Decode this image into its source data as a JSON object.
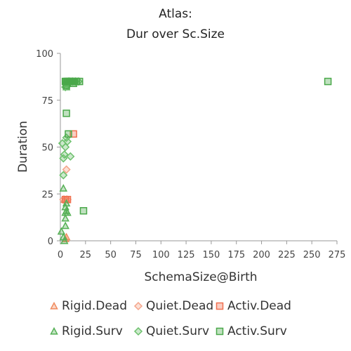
{
  "chart_data": {
    "type": "scatter",
    "title_lines": [
      "Atlas:",
      "Dur over Sc.Size"
    ],
    "xlabel": "SchemaSize@Birth",
    "ylabel": "Duration",
    "xlim": [
      0,
      275
    ],
    "ylim": [
      0,
      100
    ],
    "xticks": [
      0,
      25,
      50,
      75,
      100,
      125,
      150,
      175,
      200,
      225,
      250,
      275
    ],
    "yticks": [
      0,
      25,
      50,
      75,
      100
    ],
    "grid": false,
    "legend_position": "bottom",
    "series": [
      {
        "name": "Rigid.Dead",
        "marker": "triangle",
        "color": "#f08a5d",
        "points": [
          [
            5,
            1
          ],
          [
            6,
            2
          ],
          [
            4,
            22
          ],
          [
            6,
            22
          ]
        ]
      },
      {
        "name": "Quiet.Dead",
        "marker": "diamond",
        "color": "#f5a58a",
        "points": [
          [
            6,
            38
          ],
          [
            3,
            22
          ],
          [
            7,
            22
          ]
        ]
      },
      {
        "name": "Activ.Dead",
        "marker": "square",
        "color": "#f07050",
        "points": [
          [
            13,
            57
          ],
          [
            7,
            22
          ],
          [
            5,
            22
          ]
        ]
      },
      {
        "name": "Rigid.Surv",
        "marker": "triangle",
        "color": "#55b055",
        "points": [
          [
            1,
            5
          ],
          [
            3,
            28
          ],
          [
            5,
            8
          ],
          [
            5,
            12
          ],
          [
            5,
            15
          ],
          [
            6,
            16
          ],
          [
            7,
            15
          ],
          [
            5,
            18
          ],
          [
            6,
            20
          ],
          [
            4,
            0
          ],
          [
            3,
            2
          ],
          [
            6,
            82
          ],
          [
            7,
            84
          ],
          [
            8,
            85
          ]
        ]
      },
      {
        "name": "Quiet.Surv",
        "marker": "diamond",
        "color": "#6cc06c",
        "points": [
          [
            2,
            52
          ],
          [
            3,
            44
          ],
          [
            4,
            46
          ],
          [
            5,
            50
          ],
          [
            6,
            55
          ],
          [
            7,
            53
          ],
          [
            10,
            45
          ],
          [
            3,
            35
          ],
          [
            5,
            82
          ],
          [
            6,
            84
          ],
          [
            9,
            85
          ],
          [
            12,
            85
          ],
          [
            15,
            85
          ],
          [
            18,
            85
          ]
        ]
      },
      {
        "name": "Activ.Surv",
        "marker": "square",
        "color": "#4aa84a",
        "points": [
          [
            266,
            85
          ],
          [
            23,
            16
          ],
          [
            6,
            68
          ],
          [
            8,
            57
          ],
          [
            5,
            85
          ],
          [
            6,
            85
          ],
          [
            7,
            85
          ],
          [
            8,
            85
          ],
          [
            9,
            85
          ],
          [
            10,
            85
          ],
          [
            11,
            85
          ],
          [
            12,
            85
          ],
          [
            14,
            85
          ],
          [
            16,
            85
          ],
          [
            19,
            85
          ],
          [
            6,
            83
          ],
          [
            13,
            84
          ]
        ]
      }
    ]
  }
}
